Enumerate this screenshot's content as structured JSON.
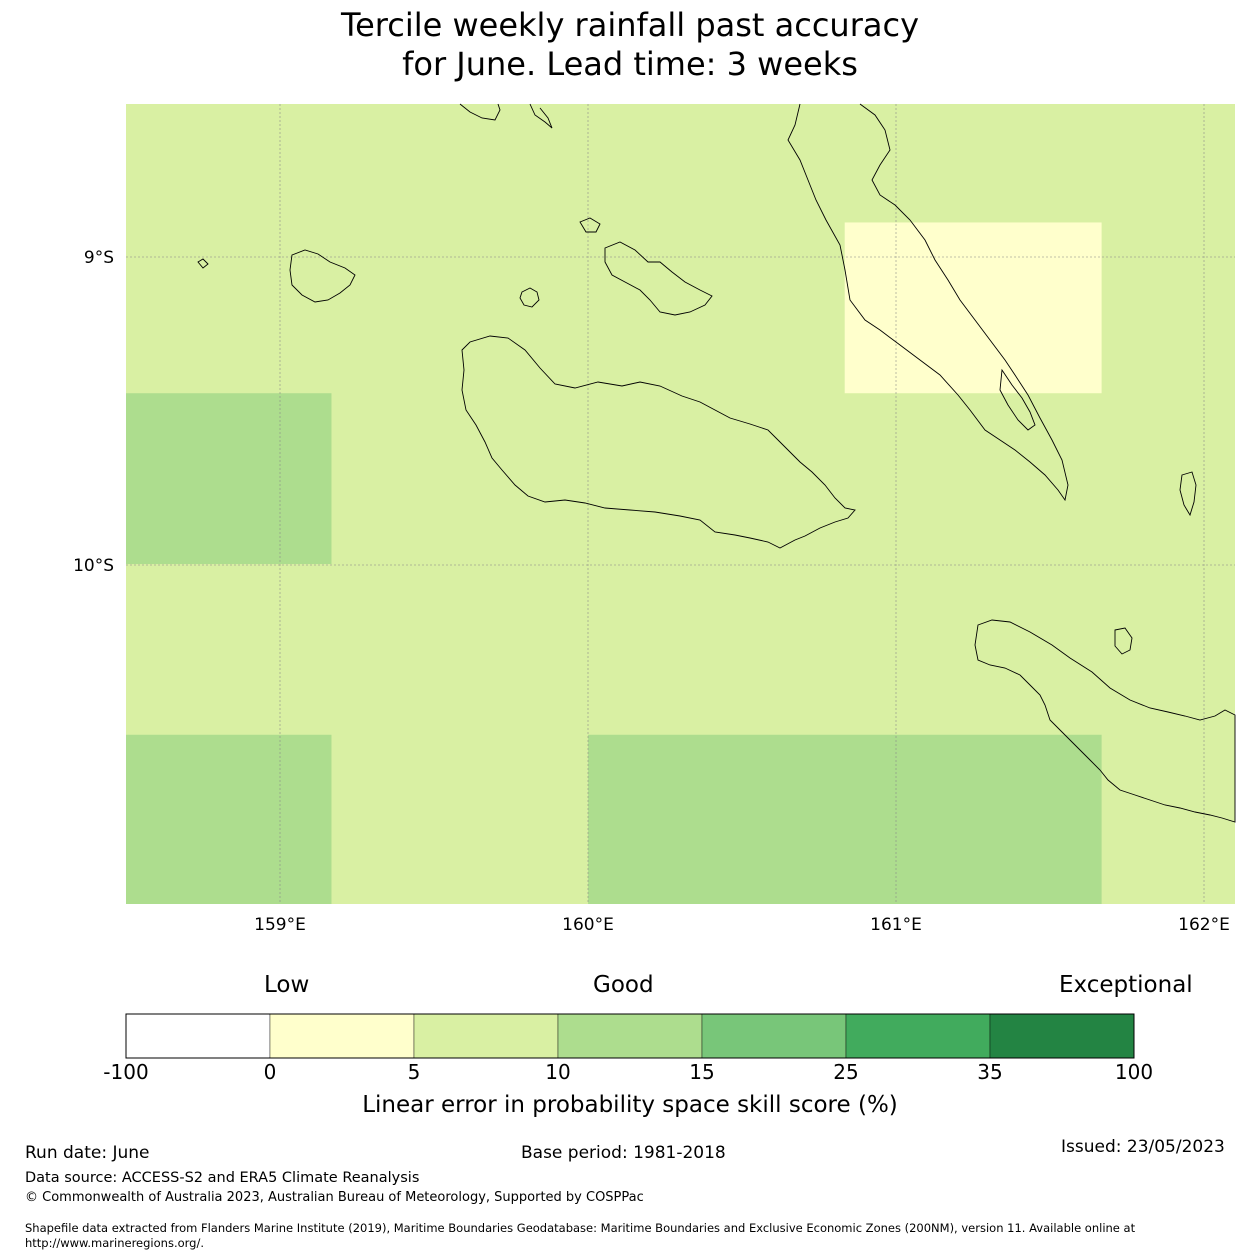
{
  "title": {
    "line1": "Tercile weekly rainfall past accuracy",
    "line2": "for June. Lead time: 3 weeks"
  },
  "map": {
    "lon_ticks": [
      "159°E",
      "160°E",
      "161°E",
      "162°E"
    ],
    "lat_ticks": [
      "9°S",
      "10°S"
    ],
    "extent": {
      "lon_min": 158.5,
      "lon_max": 162.1,
      "lat_max": -8.5,
      "lat_min": -11.1
    },
    "cells": [
      {
        "lon0": 160.833,
        "lon1": 161.667,
        "lat0": -8.885,
        "lat1": -9.44,
        "score_band": "0-5",
        "color": "#ffffcc"
      },
      {
        "lon0": 158.5,
        "lon1": 159.167,
        "lat0": -9.44,
        "lat1": -9.995,
        "score_band": "10-15",
        "color": "#addd8e"
      },
      {
        "lon0": 158.5,
        "lon1": 159.167,
        "lat0": -10.55,
        "lat1": -11.1,
        "score_band": "10-15",
        "color": "#addd8e"
      },
      {
        "lon0": 160.0,
        "lon1": 161.667,
        "lat0": -10.55,
        "lat1": -11.1,
        "score_band": "10-15",
        "color": "#addd8e"
      }
    ],
    "background_band": "5-10",
    "background_color": "#d9f0a3"
  },
  "colorbar": {
    "categories": [
      "Low",
      "Good",
      "Exceptional"
    ],
    "ticks": [
      "-100",
      "0",
      "5",
      "10",
      "15",
      "25",
      "35",
      "100"
    ],
    "colors": [
      "#ffffff",
      "#ffffcc",
      "#d9f0a3",
      "#addd8e",
      "#78c679",
      "#41ab5d",
      "#238443"
    ],
    "label": "Linear error in probability space skill score (%)"
  },
  "footer": {
    "run_date": "Run date: June",
    "base_period": "Base period: 1981-2018",
    "issued": "Issued: 23/05/2023",
    "data_source": "Data source: ACCESS-S2 and ERA5 Climate Reanalysis",
    "copyright": "© Commonwealth of Australia 2023, Australian Bureau of Meteorology, Supported by COSPPac",
    "shapefile_line1": "Shapefile data extracted from Flanders Marine Institute (2019), Maritime Boundaries Geodatabase: Maritime Boundaries and Exclusive Economic Zones (200NM), version 11. Available online at",
    "shapefile_line2": "http://www.marineregions.org/."
  }
}
